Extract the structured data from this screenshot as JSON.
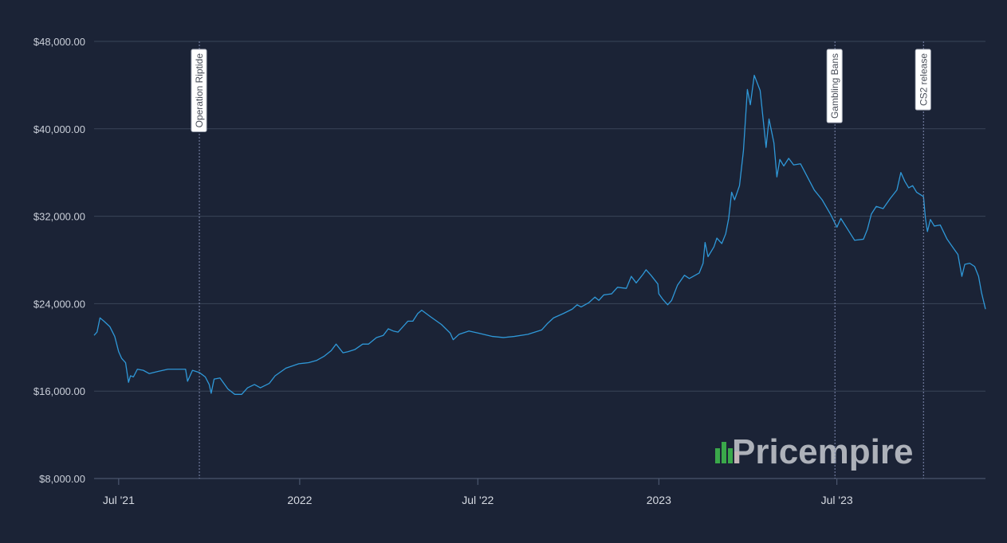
{
  "chart_data": {
    "type": "line",
    "title": "",
    "xlabel": "",
    "ylabel": "",
    "ylim": [
      8000,
      48000
    ],
    "y_ticks": [
      8000,
      16000,
      24000,
      32000,
      40000,
      48000
    ],
    "y_tick_labels": [
      "$8,000.00",
      "$16,000.00",
      "$24,000.00",
      "$32,000.00",
      "$40,000.00",
      "$48,000.00"
    ],
    "xlim": [
      "2021-06-06",
      "2023-11-29"
    ],
    "x_ticks": [
      "2021-07-01",
      "2022-01-01",
      "2022-07-01",
      "2023-01-01",
      "2023-07-01"
    ],
    "x_tick_labels": [
      "Jul '21",
      "2022",
      "Jul '22",
      "2023",
      "Jul '23"
    ],
    "grid": true,
    "legend": "none",
    "colors": {
      "background": "#1b2336",
      "line": "#2f98d8",
      "grid": "#3a4558"
    },
    "annotations": [
      {
        "date": "2021-09-21",
        "label": "Operation Riptide"
      },
      {
        "date": "2023-06-29",
        "label": "Gambling Bans"
      },
      {
        "date": "2023-09-27",
        "label": "CS2 release"
      }
    ],
    "series": [
      {
        "points": [
          [
            "2021-06-06",
            21100
          ],
          [
            "2021-06-09",
            21400
          ],
          [
            "2021-06-12",
            22700
          ],
          [
            "2021-06-16",
            22400
          ],
          [
            "2021-06-22",
            21900
          ],
          [
            "2021-06-27",
            21000
          ],
          [
            "2021-07-01",
            19600
          ],
          [
            "2021-07-04",
            19000
          ],
          [
            "2021-07-08",
            18600
          ],
          [
            "2021-07-11",
            16800
          ],
          [
            "2021-07-13",
            17400
          ],
          [
            "2021-07-16",
            17300
          ],
          [
            "2021-07-20",
            18000
          ],
          [
            "2021-07-26",
            17900
          ],
          [
            "2021-08-01",
            17600
          ],
          [
            "2021-08-10",
            17800
          ],
          [
            "2021-08-20",
            18000
          ],
          [
            "2021-08-31",
            18000
          ],
          [
            "2021-09-07",
            18000
          ],
          [
            "2021-09-09",
            16900
          ],
          [
            "2021-09-14",
            17900
          ],
          [
            "2021-09-21",
            17700
          ],
          [
            "2021-09-27",
            17300
          ],
          [
            "2021-10-01",
            16600
          ],
          [
            "2021-10-03",
            15800
          ],
          [
            "2021-10-06",
            17100
          ],
          [
            "2021-10-12",
            17200
          ],
          [
            "2021-10-20",
            16200
          ],
          [
            "2021-10-27",
            15700
          ],
          [
            "2021-11-03",
            15700
          ],
          [
            "2021-11-09",
            16300
          ],
          [
            "2021-11-16",
            16600
          ],
          [
            "2021-11-22",
            16300
          ],
          [
            "2021-12-01",
            16700
          ],
          [
            "2021-12-07",
            17400
          ],
          [
            "2021-12-18",
            18100
          ],
          [
            "2021-12-31",
            18500
          ],
          [
            "2022-01-10",
            18600
          ],
          [
            "2022-01-18",
            18800
          ],
          [
            "2022-01-26",
            19200
          ],
          [
            "2022-02-02",
            19700
          ],
          [
            "2022-02-07",
            20300
          ],
          [
            "2022-02-14",
            19500
          ],
          [
            "2022-02-19",
            19600
          ],
          [
            "2022-02-26",
            19800
          ],
          [
            "2022-03-06",
            20300
          ],
          [
            "2022-03-12",
            20300
          ],
          [
            "2022-03-20",
            20900
          ],
          [
            "2022-03-27",
            21100
          ],
          [
            "2022-04-01",
            21700
          ],
          [
            "2022-04-06",
            21500
          ],
          [
            "2022-04-11",
            21400
          ],
          [
            "2022-04-21",
            22400
          ],
          [
            "2022-04-26",
            22400
          ],
          [
            "2022-05-01",
            23100
          ],
          [
            "2022-05-05",
            23400
          ],
          [
            "2022-05-14",
            22800
          ],
          [
            "2022-05-25",
            22100
          ],
          [
            "2022-06-03",
            21300
          ],
          [
            "2022-06-06",
            20700
          ],
          [
            "2022-06-12",
            21200
          ],
          [
            "2022-06-22",
            21500
          ],
          [
            "2022-07-02",
            21300
          ],
          [
            "2022-07-16",
            21000
          ],
          [
            "2022-07-27",
            20900
          ],
          [
            "2022-08-07",
            21000
          ],
          [
            "2022-08-21",
            21200
          ],
          [
            "2022-08-28",
            21400
          ],
          [
            "2022-09-04",
            21600
          ],
          [
            "2022-09-10",
            22200
          ],
          [
            "2022-09-16",
            22700
          ],
          [
            "2022-09-26",
            23100
          ],
          [
            "2022-10-05",
            23500
          ],
          [
            "2022-10-10",
            23900
          ],
          [
            "2022-10-14",
            23700
          ],
          [
            "2022-10-22",
            24100
          ],
          [
            "2022-10-28",
            24600
          ],
          [
            "2022-11-01",
            24300
          ],
          [
            "2022-11-06",
            24800
          ],
          [
            "2022-11-14",
            24900
          ],
          [
            "2022-11-20",
            25500
          ],
          [
            "2022-11-29",
            25400
          ],
          [
            "2022-12-04",
            26500
          ],
          [
            "2022-12-09",
            25900
          ],
          [
            "2022-12-16",
            26700
          ],
          [
            "2022-12-19",
            27100
          ],
          [
            "2022-12-24",
            26600
          ],
          [
            "2022-12-31",
            25800
          ],
          [
            "2023-01-01",
            24900
          ],
          [
            "2023-01-05",
            24400
          ],
          [
            "2023-01-10",
            23900
          ],
          [
            "2023-01-14",
            24300
          ],
          [
            "2023-01-20",
            25700
          ],
          [
            "2023-01-27",
            26600
          ],
          [
            "2023-02-01",
            26300
          ],
          [
            "2023-02-05",
            26500
          ],
          [
            "2023-02-11",
            26800
          ],
          [
            "2023-02-15",
            27700
          ],
          [
            "2023-02-17",
            29600
          ],
          [
            "2023-02-20",
            28300
          ],
          [
            "2023-02-26",
            29200
          ],
          [
            "2023-03-01",
            30000
          ],
          [
            "2023-03-06",
            29500
          ],
          [
            "2023-03-10",
            30400
          ],
          [
            "2023-03-13",
            31800
          ],
          [
            "2023-03-16",
            34200
          ],
          [
            "2023-03-19",
            33500
          ],
          [
            "2023-03-24",
            34800
          ],
          [
            "2023-03-28",
            38000
          ],
          [
            "2023-04-01",
            43600
          ],
          [
            "2023-04-04",
            42200
          ],
          [
            "2023-04-08",
            44900
          ],
          [
            "2023-04-14",
            43500
          ],
          [
            "2023-04-20",
            38300
          ],
          [
            "2023-04-23",
            40900
          ],
          [
            "2023-04-28",
            38700
          ],
          [
            "2023-05-01",
            35600
          ],
          [
            "2023-05-04",
            37200
          ],
          [
            "2023-05-08",
            36600
          ],
          [
            "2023-05-13",
            37300
          ],
          [
            "2023-05-18",
            36700
          ],
          [
            "2023-05-25",
            36800
          ],
          [
            "2023-06-01",
            35600
          ],
          [
            "2023-06-08",
            34400
          ],
          [
            "2023-06-16",
            33500
          ],
          [
            "2023-06-25",
            32100
          ],
          [
            "2023-07-01",
            31000
          ],
          [
            "2023-07-05",
            31800
          ],
          [
            "2023-07-12",
            30800
          ],
          [
            "2023-07-19",
            29800
          ],
          [
            "2023-07-28",
            29900
          ],
          [
            "2023-08-01",
            30800
          ],
          [
            "2023-08-05",
            32200
          ],
          [
            "2023-08-10",
            32900
          ],
          [
            "2023-08-17",
            32700
          ],
          [
            "2023-08-24",
            33600
          ],
          [
            "2023-08-31",
            34400
          ],
          [
            "2023-09-04",
            36000
          ],
          [
            "2023-09-08",
            35200
          ],
          [
            "2023-09-12",
            34600
          ],
          [
            "2023-09-16",
            34800
          ],
          [
            "2023-09-20",
            34200
          ],
          [
            "2023-09-27",
            33800
          ],
          [
            "2023-09-29",
            31800
          ],
          [
            "2023-10-01",
            30600
          ],
          [
            "2023-10-04",
            31700
          ],
          [
            "2023-10-08",
            31100
          ],
          [
            "2023-10-14",
            31200
          ],
          [
            "2023-10-21",
            29900
          ],
          [
            "2023-10-28",
            29000
          ],
          [
            "2023-11-01",
            28500
          ],
          [
            "2023-11-05",
            26500
          ],
          [
            "2023-11-08",
            27600
          ],
          [
            "2023-11-13",
            27700
          ],
          [
            "2023-11-18",
            27400
          ],
          [
            "2023-11-22",
            26500
          ],
          [
            "2023-11-25",
            25000
          ],
          [
            "2023-11-29",
            23500
          ]
        ]
      }
    ]
  },
  "watermark": {
    "text": "Pricempire"
  }
}
